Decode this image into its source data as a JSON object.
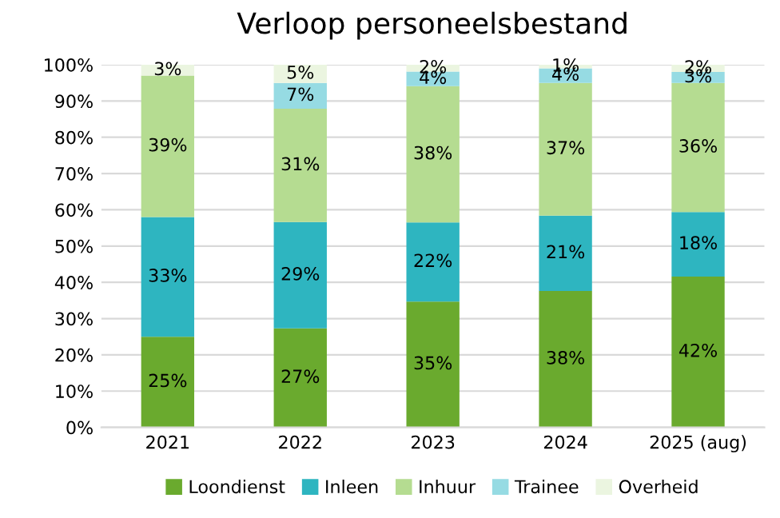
{
  "chart_data": {
    "type": "bar",
    "title": "Verloop personeelsbestand",
    "stacked": true,
    "categories": [
      "2021",
      "2022",
      "2023",
      "2024",
      "2025 (aug)"
    ],
    "series": [
      {
        "name": "Loondienst",
        "color": "#6aaa2e",
        "values": [
          25,
          27.3,
          34.7,
          37.6,
          41.6
        ],
        "value_labels": [
          "25%",
          "27%",
          "35%",
          "38%",
          "42%"
        ]
      },
      {
        "name": "Inleen",
        "color": "#2eb5c0",
        "values": [
          33,
          29.3,
          21.8,
          20.8,
          17.8
        ],
        "value_labels": [
          "33%",
          "29%",
          "22%",
          "21%",
          "18%"
        ]
      },
      {
        "name": "Inhuur",
        "color": "#b5dc91",
        "values": [
          39,
          31.3,
          37.6,
          36.6,
          35.6
        ],
        "value_labels": [
          "39%",
          "31%",
          "38%",
          "37%",
          "36%"
        ]
      },
      {
        "name": "Trainee",
        "color": "#96dbe3",
        "values": [
          0,
          7.1,
          4.0,
          4.0,
          3.0
        ],
        "value_labels": [
          null,
          "7%",
          "4%",
          "4%",
          "3%"
        ]
      },
      {
        "name": "Overheid",
        "color": "#ebf5e0",
        "values": [
          3,
          5.0,
          1.9,
          1.0,
          2.0
        ],
        "value_labels": [
          "3%",
          "5%",
          "2%",
          "1%",
          "2%"
        ]
      }
    ],
    "ylim": [
      0,
      100
    ],
    "yticks": [
      {
        "value": 0,
        "label": "0%"
      },
      {
        "value": 10,
        "label": "10%"
      },
      {
        "value": 20,
        "label": "20%"
      },
      {
        "value": 30,
        "label": "30%"
      },
      {
        "value": 40,
        "label": "40%"
      },
      {
        "value": 50,
        "label": "50%"
      },
      {
        "value": 60,
        "label": "60%"
      },
      {
        "value": 70,
        "label": "70%"
      },
      {
        "value": 80,
        "label": "80%"
      },
      {
        "value": 90,
        "label": "90%"
      },
      {
        "value": 100,
        "label": "100%"
      }
    ],
    "grid": "y",
    "legend": "bottom"
  }
}
